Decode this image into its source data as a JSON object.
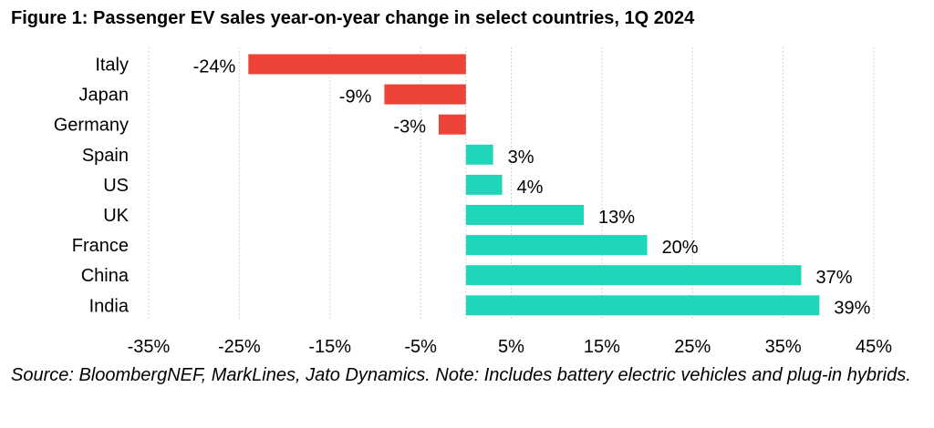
{
  "figure": {
    "title": "Figure 1: Passenger EV sales year-on-year change in select countries, 1Q 2024",
    "source_note": "Source: BloombergNEF, MarkLines, Jato Dynamics. Note: Includes battery electric vehicles and plug-in hybrids."
  },
  "colors": {
    "negative": "#EE4337",
    "positive": "#1ED6B9",
    "gridline": "#C8C8C8"
  },
  "chart_data": {
    "type": "bar",
    "orientation": "horizontal",
    "title": "Figure 1: Passenger EV sales year-on-year change in select countries, 1Q 2024",
    "xlabel": "",
    "ylabel": "",
    "categories": [
      "Italy",
      "Japan",
      "Germany",
      "Spain",
      "US",
      "UK",
      "France",
      "China",
      "India"
    ],
    "values": [
      -24,
      -9,
      -3,
      3,
      4,
      13,
      20,
      37,
      39
    ],
    "value_labels": [
      "-24%",
      "-9%",
      "-3%",
      "3%",
      "4%",
      "13%",
      "20%",
      "37%",
      "39%"
    ],
    "xlim": [
      -35,
      45
    ],
    "x_ticks": [
      -35,
      -25,
      -15,
      -5,
      5,
      15,
      25,
      35,
      45
    ],
    "x_tick_labels": [
      "-35%",
      "-25%",
      "-15%",
      "-5%",
      "5%",
      "15%",
      "25%",
      "35%",
      "45%"
    ],
    "grid": "vertical dotted",
    "legend": "none"
  }
}
